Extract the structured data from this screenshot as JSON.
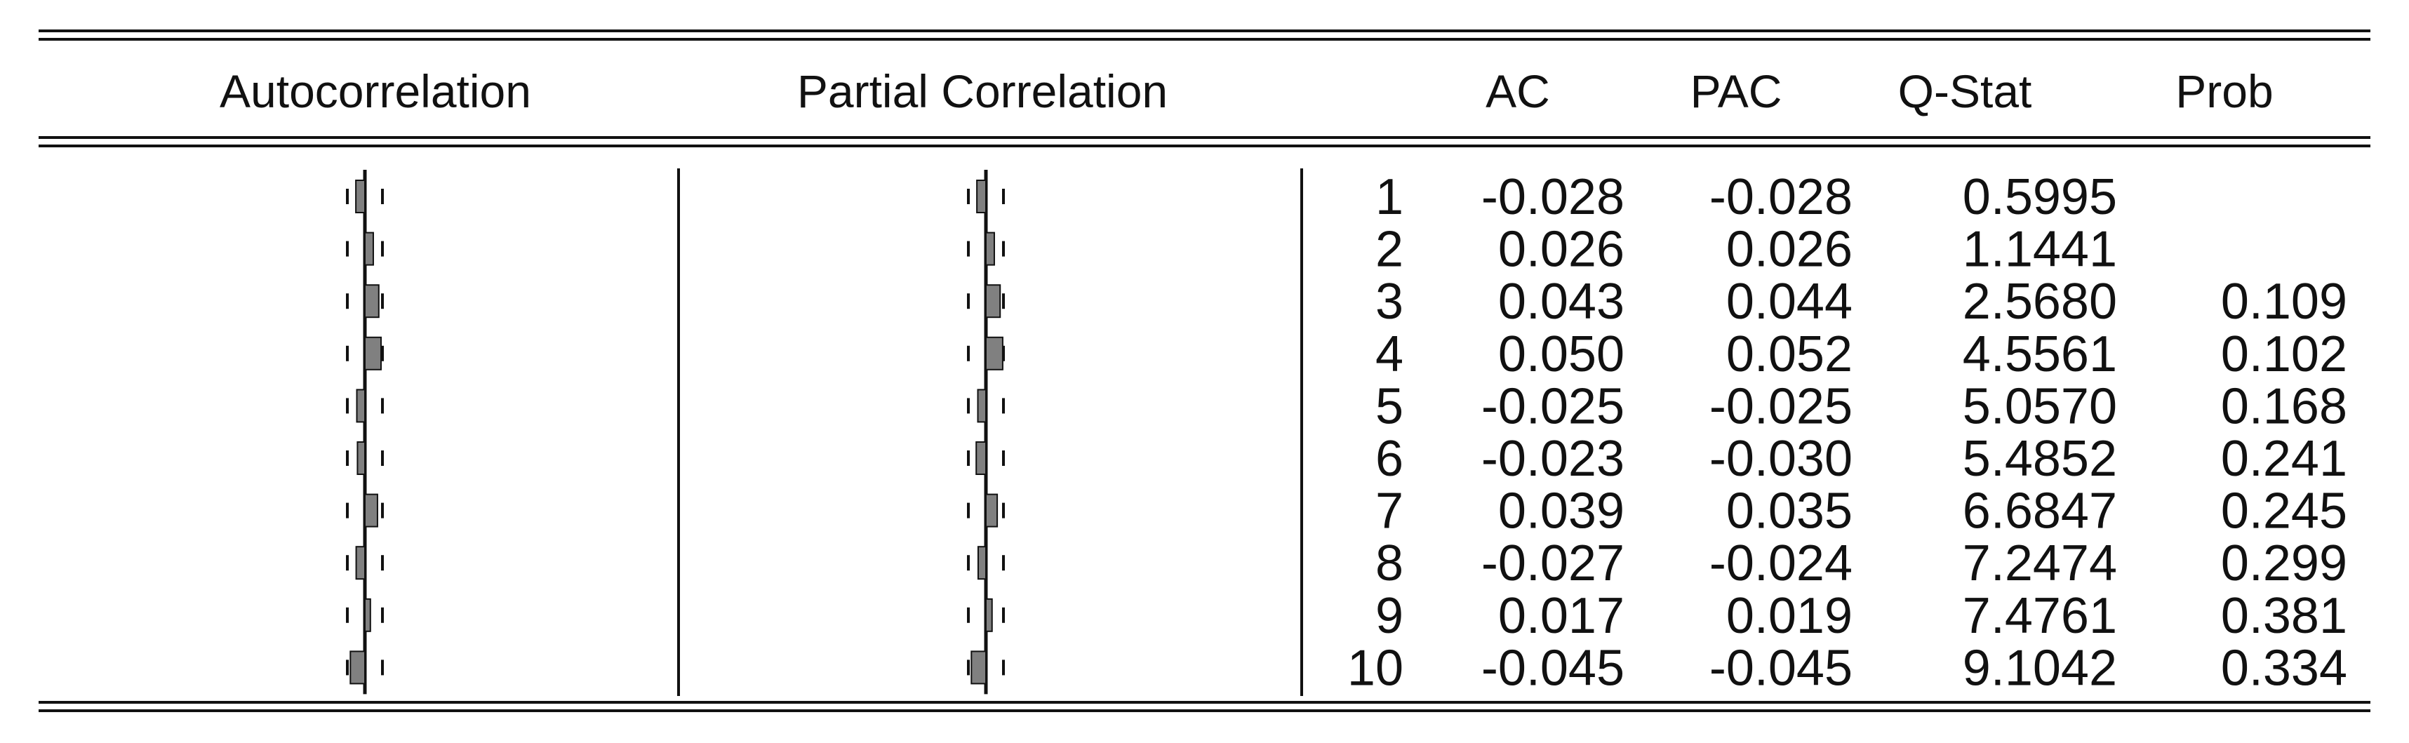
{
  "headers": {
    "autocorrelation": "Autocorrelation",
    "partial_correlation": "Partial Correlation",
    "ac": "AC",
    "pac": "PAC",
    "qstat": "Q-Stat",
    "prob": "Prob"
  },
  "chart_data": {
    "type": "table",
    "columns": [
      "",
      "AC",
      "PAC",
      "Q-Stat",
      "Prob"
    ],
    "bar_color": "#808080",
    "rows": [
      {
        "lag": "1",
        "ac": "-0.028",
        "pac": "-0.028",
        "qstat": "0.5995",
        "prob": ""
      },
      {
        "lag": "2",
        "ac": "0.026",
        "pac": "0.026",
        "qstat": "1.1441",
        "prob": ""
      },
      {
        "lag": "3",
        "ac": "0.043",
        "pac": "0.044",
        "qstat": "2.5680",
        "prob": "0.109"
      },
      {
        "lag": "4",
        "ac": "0.050",
        "pac": "0.052",
        "qstat": "4.5561",
        "prob": "0.102"
      },
      {
        "lag": "5",
        "ac": "-0.025",
        "pac": "-0.025",
        "qstat": "5.0570",
        "prob": "0.168"
      },
      {
        "lag": "6",
        "ac": "-0.023",
        "pac": "-0.030",
        "qstat": "5.4852",
        "prob": "0.241"
      },
      {
        "lag": "7",
        "ac": "0.039",
        "pac": "0.035",
        "qstat": "6.6847",
        "prob": "0.245"
      },
      {
        "lag": "8",
        "ac": "-0.027",
        "pac": "-0.024",
        "qstat": "7.2474",
        "prob": "0.299"
      },
      {
        "lag": "9",
        "ac": "0.017",
        "pac": "0.019",
        "qstat": "7.4761",
        "prob": "0.381"
      },
      {
        "lag": "10",
        "ac": "-0.045",
        "pac": "-0.045",
        "qstat": "9.1042",
        "prob": "0.334"
      }
    ]
  }
}
